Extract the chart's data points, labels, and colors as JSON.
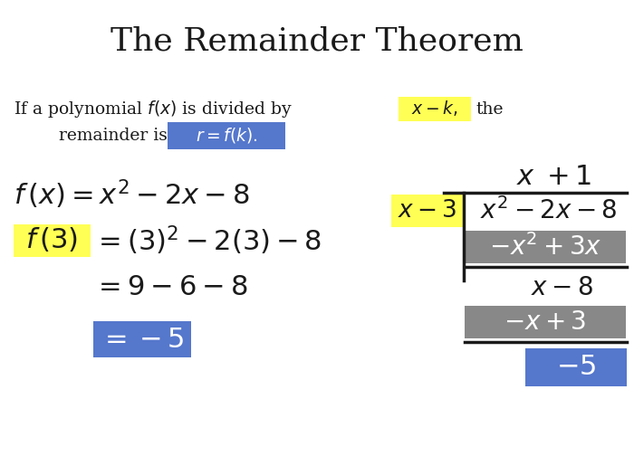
{
  "title": "The Remainder Theorem",
  "bg_color": "#ffffff",
  "text_color": "#1a1a1a",
  "yellow_bg": "#ffff55",
  "blue_bg": "#5577cc",
  "gray_bg": "#888888",
  "white": "#ffffff"
}
